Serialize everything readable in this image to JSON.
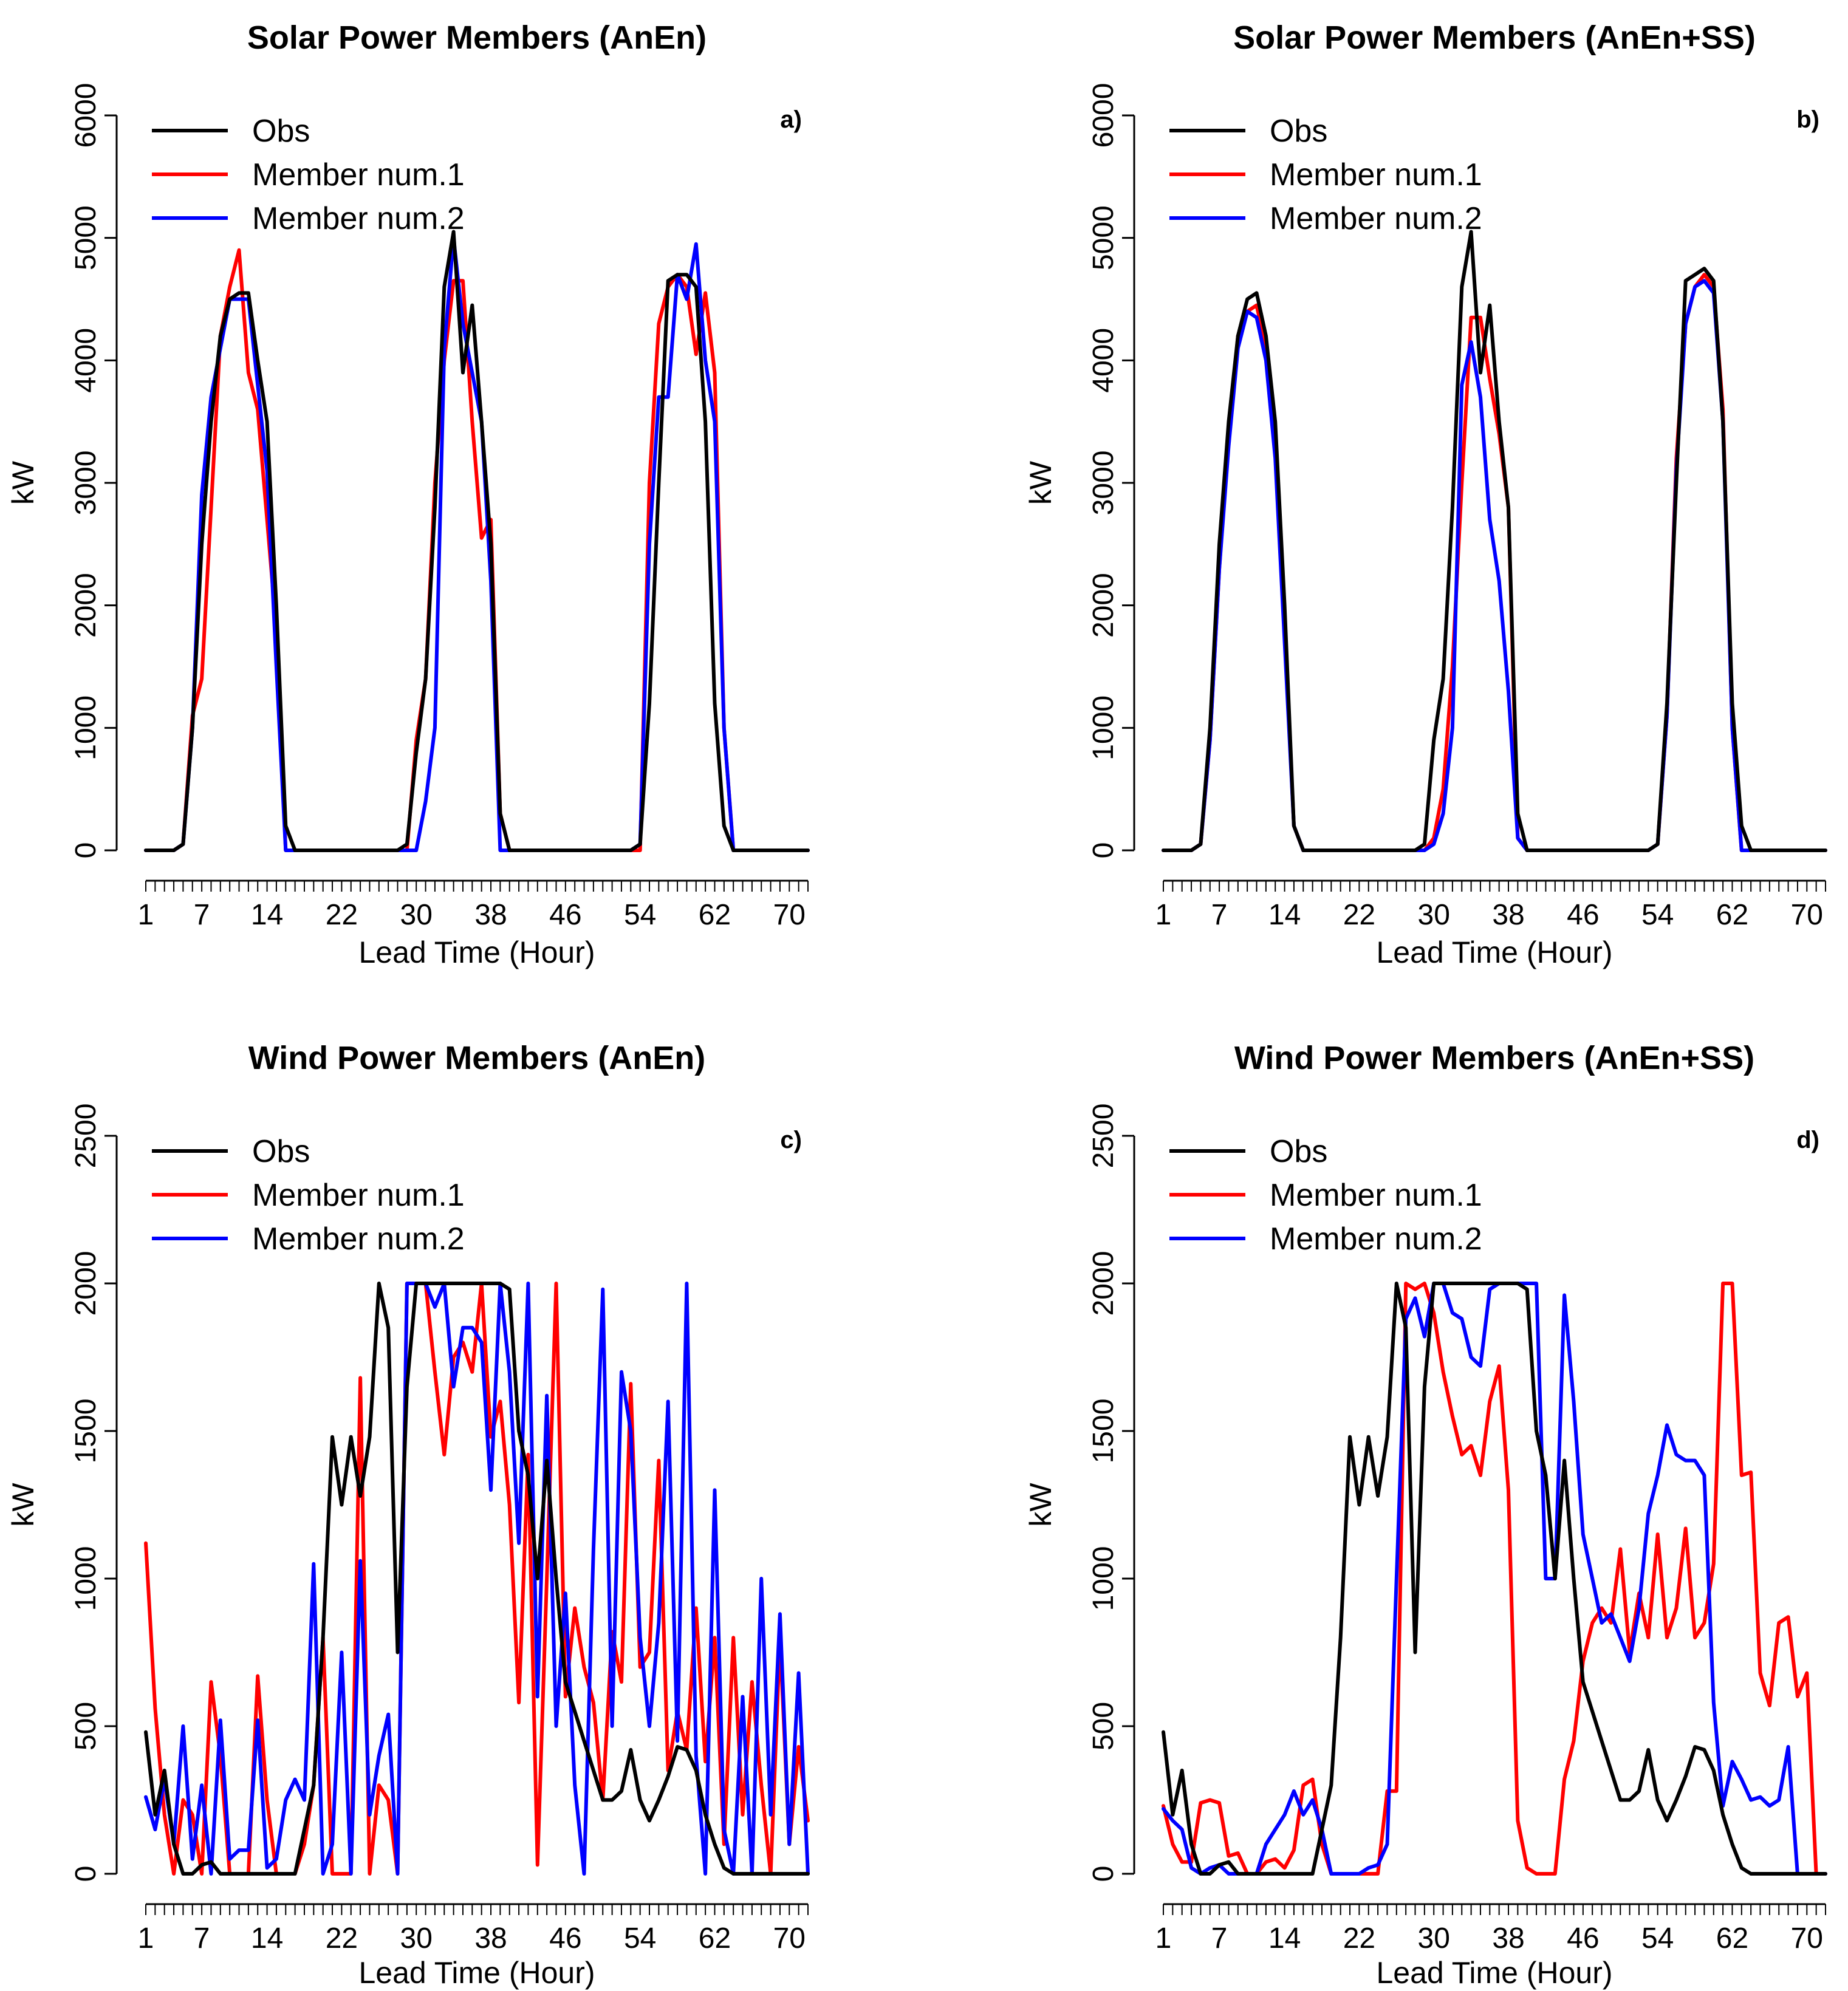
{
  "chart_data": [
    {
      "type": "line",
      "panel_label": "a)",
      "title": "Solar Power Members (AnEn)",
      "xlabel": "Lead Time (Hour)",
      "ylabel": "kW",
      "xlim": [
        1,
        72
      ],
      "ylim": [
        0,
        6000
      ],
      "yticks": [
        0,
        1000,
        2000,
        3000,
        4000,
        5000,
        6000
      ],
      "xticks": [
        1,
        7,
        14,
        22,
        30,
        38,
        46,
        54,
        62,
        70
      ],
      "legend_position": "top-left",
      "series": [
        {
          "name": "Obs",
          "color": "#000000",
          "values": [
            0,
            0,
            0,
            0,
            50,
            1000,
            2500,
            3500,
            4200,
            4500,
            4550,
            4550,
            4000,
            3500,
            2000,
            200,
            0,
            0,
            0,
            0,
            0,
            0,
            0,
            0,
            0,
            0,
            0,
            0,
            50,
            800,
            1400,
            2800,
            4600,
            5050,
            3900,
            4450,
            3500,
            2500,
            300,
            0,
            0,
            0,
            0,
            0,
            0,
            0,
            0,
            0,
            0,
            0,
            0,
            0,
            0,
            50,
            1200,
            3000,
            4650,
            4700,
            4700,
            4600,
            3500,
            1200,
            200,
            0,
            0,
            0,
            0,
            0,
            0,
            0,
            0,
            0
          ]
        },
        {
          "name": "Member num.1",
          "color": "#ff0000",
          "values": [
            0,
            0,
            0,
            0,
            50,
            1100,
            1400,
            2800,
            4200,
            4600,
            4900,
            3900,
            3600,
            2700,
            1800,
            0,
            0,
            0,
            0,
            0,
            0,
            0,
            0,
            0,
            0,
            0,
            0,
            0,
            0,
            900,
            1400,
            3000,
            4000,
            4650,
            4650,
            3500,
            2550,
            2700,
            300,
            0,
            0,
            0,
            0,
            0,
            0,
            0,
            0,
            0,
            0,
            0,
            0,
            0,
            0,
            0,
            3000,
            4300,
            4600,
            4700,
            4600,
            4050,
            4550,
            3900,
            1000,
            0,
            0,
            0,
            0,
            0,
            0,
            0,
            0,
            0
          ]
        },
        {
          "name": "Member num.2",
          "color": "#0000ff",
          "values": [
            0,
            0,
            0,
            0,
            50,
            1000,
            2900,
            3700,
            4100,
            4500,
            4500,
            4500,
            3800,
            3100,
            1500,
            0,
            0,
            0,
            0,
            0,
            0,
            0,
            0,
            0,
            0,
            0,
            0,
            0,
            0,
            0,
            400,
            1000,
            4100,
            5000,
            4300,
            3900,
            3500,
            2200,
            0,
            0,
            0,
            0,
            0,
            0,
            0,
            0,
            0,
            0,
            0,
            0,
            0,
            0,
            0,
            50,
            2500,
            3700,
            3700,
            4700,
            4500,
            4950,
            4000,
            3500,
            1000,
            0,
            0,
            0,
            0,
            0,
            0,
            0,
            0,
            0
          ]
        }
      ]
    },
    {
      "type": "line",
      "panel_label": "b)",
      "title": "Solar Power Members (AnEn+SS)",
      "xlabel": "Lead Time (Hour)",
      "ylabel": "kW",
      "xlim": [
        1,
        72
      ],
      "ylim": [
        0,
        6000
      ],
      "yticks": [
        0,
        1000,
        2000,
        3000,
        4000,
        5000,
        6000
      ],
      "xticks": [
        1,
        7,
        14,
        22,
        30,
        38,
        46,
        54,
        62,
        70
      ],
      "legend_position": "top-left",
      "series": [
        {
          "name": "Obs",
          "color": "#000000",
          "values": [
            0,
            0,
            0,
            0,
            50,
            1000,
            2500,
            3500,
            4200,
            4500,
            4550,
            4200,
            3500,
            2000,
            200,
            0,
            0,
            0,
            0,
            0,
            0,
            0,
            0,
            0,
            0,
            0,
            0,
            0,
            50,
            900,
            1400,
            2800,
            4600,
            5050,
            3900,
            4450,
            3500,
            2800,
            300,
            0,
            0,
            0,
            0,
            0,
            0,
            0,
            0,
            0,
            0,
            0,
            0,
            0,
            0,
            50,
            1200,
            3000,
            4650,
            4700,
            4750,
            4650,
            3500,
            1200,
            200,
            0,
            0,
            0,
            0,
            0,
            0,
            0,
            0,
            0
          ]
        },
        {
          "name": "Member num.1",
          "color": "#ff0000",
          "values": [
            0,
            0,
            0,
            0,
            50,
            900,
            2300,
            3400,
            4200,
            4400,
            4450,
            4100,
            3300,
            1800,
            200,
            0,
            0,
            0,
            0,
            0,
            0,
            0,
            0,
            0,
            0,
            0,
            0,
            0,
            0,
            100,
            500,
            1500,
            3000,
            4350,
            4350,
            3850,
            3400,
            2800,
            100,
            0,
            0,
            0,
            0,
            0,
            0,
            0,
            0,
            0,
            0,
            0,
            0,
            0,
            0,
            50,
            1100,
            3200,
            4300,
            4600,
            4700,
            4600,
            3600,
            1000,
            0,
            0,
            0,
            0,
            0,
            0,
            0,
            0,
            0,
            0
          ]
        },
        {
          "name": "Member num.2",
          "color": "#0000ff",
          "values": [
            0,
            0,
            0,
            0,
            50,
            900,
            2300,
            3300,
            4100,
            4400,
            4350,
            4000,
            3200,
            1700,
            200,
            0,
            0,
            0,
            0,
            0,
            0,
            0,
            0,
            0,
            0,
            0,
            0,
            0,
            0,
            50,
            300,
            1000,
            3800,
            4150,
            3700,
            2700,
            2200,
            1300,
            100,
            0,
            0,
            0,
            0,
            0,
            0,
            0,
            0,
            0,
            0,
            0,
            0,
            0,
            0,
            50,
            1100,
            3100,
            4300,
            4600,
            4650,
            4550,
            3500,
            1000,
            0,
            0,
            0,
            0,
            0,
            0,
            0,
            0,
            0,
            0
          ]
        }
      ]
    },
    {
      "type": "line",
      "panel_label": "c)",
      "title": "Wind Power Members (AnEn)",
      "xlabel": "Lead Time (Hour)",
      "ylabel": "kW",
      "xlim": [
        1,
        72
      ],
      "ylim": [
        0,
        2500
      ],
      "yticks": [
        0,
        500,
        1000,
        1500,
        2000,
        2500
      ],
      "xticks": [
        1,
        7,
        14,
        22,
        30,
        38,
        46,
        54,
        62,
        70
      ],
      "legend_position": "top-left",
      "series": [
        {
          "name": "Obs",
          "color": "#000000",
          "values": [
            480,
            200,
            350,
            100,
            0,
            0,
            30,
            40,
            0,
            0,
            0,
            0,
            0,
            0,
            0,
            0,
            0,
            150,
            300,
            800,
            1480,
            1250,
            1480,
            1280,
            1480,
            2000,
            1850,
            750,
            1650,
            2000,
            2000,
            2000,
            2000,
            2000,
            2000,
            2000,
            2000,
            2000,
            2000,
            1980,
            1500,
            1350,
            1000,
            1400,
            1000,
            650,
            550,
            450,
            350,
            250,
            250,
            280,
            420,
            250,
            180,
            250,
            330,
            430,
            420,
            350,
            200,
            100,
            20,
            0,
            0,
            0,
            0,
            0,
            0,
            0,
            0,
            0
          ]
        },
        {
          "name": "Member num.1",
          "color": "#ff0000",
          "values": [
            1120,
            560,
            200,
            0,
            250,
            200,
            0,
            650,
            400,
            0,
            0,
            0,
            670,
            250,
            0,
            0,
            0,
            100,
            300,
            800,
            0,
            0,
            0,
            1680,
            0,
            300,
            250,
            0,
            2000,
            2000,
            2000,
            1700,
            1420,
            1750,
            1800,
            1700,
            2000,
            1480,
            1600,
            1250,
            580,
            1420,
            30,
            1000,
            2000,
            600,
            900,
            700,
            580,
            250,
            820,
            650,
            1660,
            700,
            750,
            1400,
            350,
            550,
            420,
            900,
            380,
            800,
            100,
            800,
            200,
            650,
            300,
            0,
            800,
            100,
            430,
            180
          ]
        },
        {
          "name": "Member num.2",
          "color": "#0000ff",
          "values": [
            260,
            150,
            320,
            100,
            500,
            50,
            300,
            0,
            520,
            50,
            80,
            80,
            520,
            20,
            50,
            250,
            320,
            250,
            1050,
            0,
            100,
            750,
            0,
            1060,
            200,
            400,
            540,
            0,
            2000,
            2000,
            2000,
            1920,
            2000,
            1650,
            1850,
            1850,
            1800,
            1300,
            2000,
            1700,
            1120,
            2000,
            600,
            1620,
            500,
            950,
            300,
            0,
            1100,
            1980,
            500,
            1700,
            1500,
            800,
            500,
            850,
            1600,
            450,
            2000,
            400,
            0,
            1300,
            150,
            0,
            600,
            0,
            1000,
            200,
            880,
            100,
            680,
            0
          ]
        }
      ]
    },
    {
      "type": "line",
      "panel_label": "d)",
      "title": "Wind Power Members (AnEn+SS)",
      "xlabel": "Lead Time (Hour)",
      "ylabel": "kW",
      "xlim": [
        1,
        72
      ],
      "ylim": [
        0,
        2500
      ],
      "yticks": [
        0,
        500,
        1000,
        1500,
        2000,
        2500
      ],
      "xticks": [
        1,
        7,
        14,
        22,
        30,
        38,
        46,
        54,
        62,
        70
      ],
      "legend_position": "top-left",
      "series": [
        {
          "name": "Obs",
          "color": "#000000",
          "values": [
            480,
            200,
            350,
            100,
            0,
            0,
            30,
            40,
            0,
            0,
            0,
            0,
            0,
            0,
            0,
            0,
            0,
            150,
            300,
            800,
            1480,
            1250,
            1480,
            1280,
            1480,
            2000,
            1850,
            750,
            1650,
            2000,
            2000,
            2000,
            2000,
            2000,
            2000,
            2000,
            2000,
            2000,
            2000,
            1980,
            1500,
            1350,
            1000,
            1400,
            1000,
            650,
            550,
            450,
            350,
            250,
            250,
            280,
            420,
            250,
            180,
            250,
            330,
            430,
            420,
            350,
            200,
            100,
            20,
            0,
            0,
            0,
            0,
            0,
            0,
            0,
            0,
            0
          ]
        },
        {
          "name": "Member num.1",
          "color": "#ff0000",
          "values": [
            230,
            100,
            40,
            40,
            240,
            250,
            240,
            60,
            70,
            0,
            0,
            40,
            50,
            20,
            80,
            300,
            320,
            100,
            0,
            0,
            0,
            0,
            0,
            0,
            280,
            280,
            2000,
            1980,
            2000,
            1900,
            1700,
            1550,
            1420,
            1450,
            1350,
            1600,
            1720,
            1300,
            180,
            20,
            0,
            0,
            0,
            320,
            450,
            720,
            850,
            900,
            850,
            1100,
            750,
            950,
            800,
            1150,
            800,
            900,
            1170,
            800,
            850,
            1050,
            2000,
            2000,
            1350,
            1360,
            680,
            570,
            850,
            870,
            600,
            680,
            0,
            0
          ]
        },
        {
          "name": "Member num.2",
          "color": "#0000ff",
          "values": [
            220,
            180,
            150,
            20,
            0,
            20,
            30,
            0,
            0,
            0,
            0,
            100,
            150,
            200,
            280,
            200,
            250,
            150,
            0,
            0,
            0,
            0,
            20,
            30,
            100,
            1000,
            1880,
            1950,
            1820,
            2000,
            2000,
            1900,
            1880,
            1750,
            1720,
            1980,
            2000,
            2000,
            2000,
            2000,
            2000,
            1000,
            1000,
            1960,
            1600,
            1150,
            1000,
            850,
            880,
            800,
            720,
            900,
            1220,
            1350,
            1520,
            1420,
            1400,
            1400,
            1350,
            580,
            230,
            380,
            320,
            250,
            260,
            230,
            250,
            430,
            0,
            0,
            0,
            0
          ]
        }
      ]
    }
  ]
}
